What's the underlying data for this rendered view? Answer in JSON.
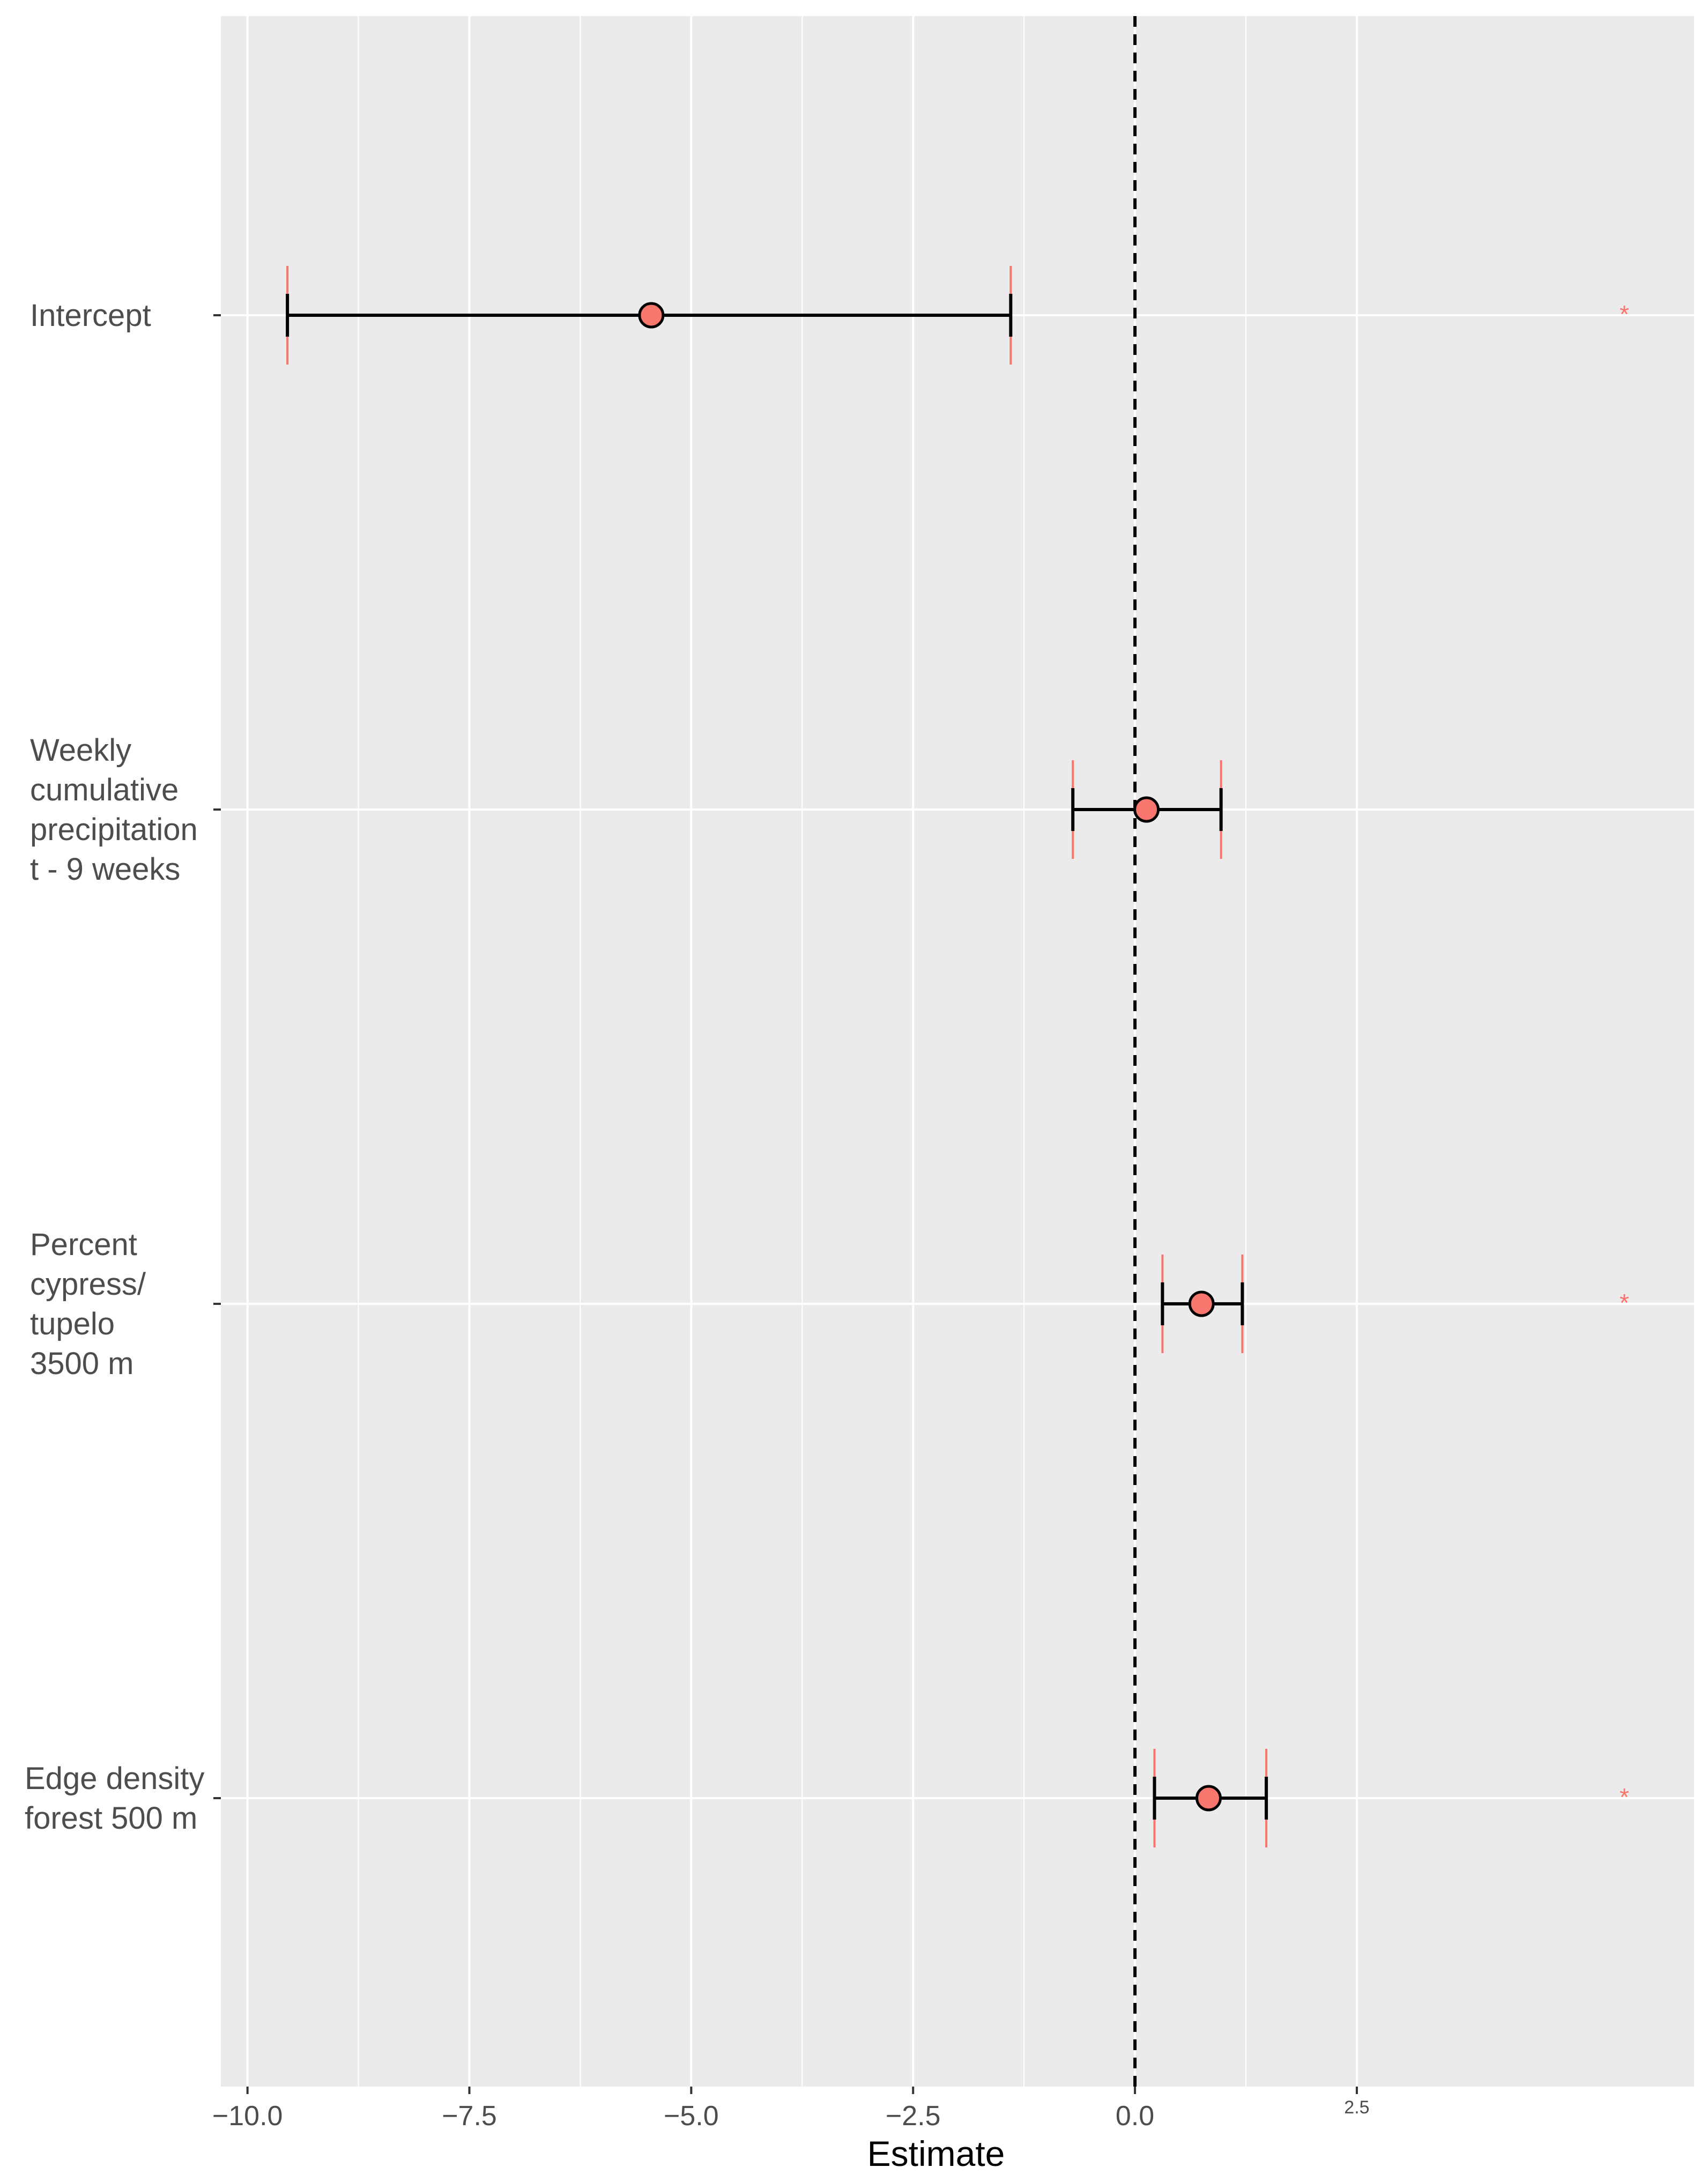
{
  "chart_data": {
    "type": "forest",
    "title": "",
    "xlabel": "Estimate",
    "ylabel": "",
    "xlim": [
      -10.3,
      6.3
    ],
    "reference_line": 0,
    "x_ticks": [
      {
        "value": -10,
        "label": "−10.0"
      },
      {
        "value": -7.5,
        "label": "−7.5"
      },
      {
        "value": -5,
        "label": "−5.0"
      },
      {
        "value": -2.5,
        "label": "−2.5"
      },
      {
        "value": 0,
        "label": "0.0"
      },
      {
        "value": 2.5,
        "label": "2.5"
      }
    ],
    "terms": [
      {
        "label_lines": [
          "Intercept"
        ],
        "estimate": -5.45,
        "ci_low": -9.55,
        "ci_high": -1.4,
        "outer_low": -9.55,
        "outer_high": -1.4,
        "significant": true,
        "marker": "*"
      },
      {
        "label_lines": [
          "Weekly",
          "cumulative",
          "precipitation",
          "t - 9 weeks"
        ],
        "estimate": 0.13,
        "ci_low": -0.7,
        "ci_high": 0.97,
        "outer_low": -0.7,
        "outer_high": 0.97,
        "significant": false,
        "marker": ""
      },
      {
        "label_lines": [
          "Percent",
          "cypress/",
          "tupelo",
          "3500 m"
        ],
        "estimate": 0.75,
        "ci_low": 0.31,
        "ci_high": 1.21,
        "outer_low": 0.31,
        "outer_high": 1.21,
        "significant": true,
        "marker": "*"
      },
      {
        "label_lines": [
          "Edge density",
          "forest 500 m"
        ],
        "estimate": 0.83,
        "ci_low": 0.22,
        "ci_high": 1.48,
        "outer_low": 0.22,
        "outer_high": 1.48,
        "significant": true,
        "marker": "*"
      }
    ],
    "colors": {
      "panel": "#EBEBEB",
      "grid": "#FFFFFF",
      "point_fill": "#F8766D",
      "outer_bar": "#F8766D",
      "inner_bar": "#000000",
      "significance": "#F8766D"
    }
  }
}
